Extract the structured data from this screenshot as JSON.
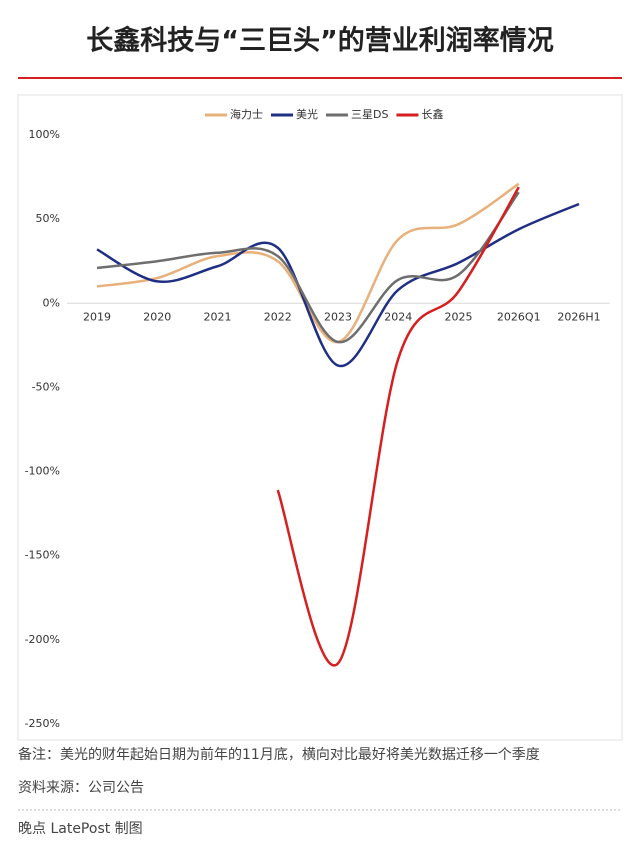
{
  "title": "长鑫科技与“三巨头”的营业利润率情况",
  "chart_data": {
    "type": "line",
    "categories": [
      "2019",
      "2020",
      "2021",
      "2022",
      "2023",
      "2024",
      "2025",
      "2026Q1",
      "2026H1"
    ],
    "series": [
      {
        "name": "海力士",
        "color": "#e8b07a",
        "values": [
          10,
          15,
          28,
          25,
          -23,
          38,
          47,
          71,
          null
        ]
      },
      {
        "name": "美光",
        "color": "#1f2f84",
        "values": [
          32,
          13,
          22,
          33,
          -37,
          8,
          24,
          44,
          59
        ]
      },
      {
        "name": "三星DS",
        "color": "#6e6e6e",
        "values": [
          21,
          25,
          30,
          28,
          -23,
          14,
          17,
          66,
          null
        ]
      },
      {
        "name": "长鑫",
        "color": "#d61f1f",
        "values": [
          null,
          null,
          null,
          -111,
          -214,
          -33,
          7,
          69,
          null
        ]
      }
    ],
    "ylim": [
      -250,
      100
    ],
    "yticks": [
      {
        "value": -250,
        "label": "-250%"
      },
      {
        "value": -200,
        "label": "-200%"
      },
      {
        "value": -150,
        "label": "-150%"
      },
      {
        "value": -100,
        "label": "-100%"
      },
      {
        "value": -50,
        "label": "-50%"
      },
      {
        "value": 0,
        "label": "0%"
      },
      {
        "value": 50,
        "label": "50%"
      },
      {
        "value": 100,
        "label": "100%"
      }
    ],
    "legend": "top"
  },
  "footer": {
    "note": "备注：美光的财年起始日期为前年的11月底，横向对比最好将美光数据迁移一个季度",
    "source": "资料来源：公司公告",
    "credit": "晚点 LatePost 制图"
  }
}
